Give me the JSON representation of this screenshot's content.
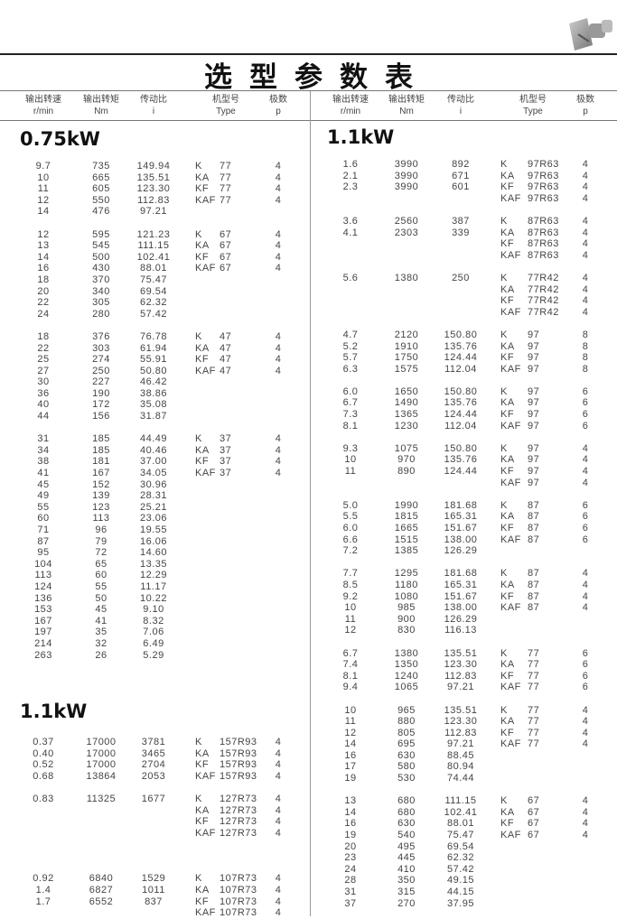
{
  "title": "选型参数表",
  "header": {
    "speed": [
      "输出转速",
      "r/min"
    ],
    "torque": [
      "输出转矩",
      "Nm"
    ],
    "ratio": [
      "传动比",
      "i"
    ],
    "type": [
      "机型号",
      "Type"
    ],
    "poles": [
      "极数",
      "p"
    ]
  },
  "left": [
    {
      "power": "0.75kW",
      "groups": [
        {
          "rows": [
            [
              "9.7",
              "735",
              "149.94",
              "K",
              "77",
              "4"
            ],
            [
              "10",
              "665",
              "135.51",
              "KA",
              "77",
              "4"
            ],
            [
              "11",
              "605",
              "123.30",
              "KF",
              "77",
              "4"
            ],
            [
              "12",
              "550",
              "112.83",
              "KAF",
              "77",
              "4"
            ],
            [
              "14",
              "476",
              "97.21",
              "",
              "",
              ""
            ]
          ]
        },
        {
          "rows": [
            [
              "12",
              "595",
              "121.23",
              "K",
              "67",
              "4"
            ],
            [
              "13",
              "545",
              "111.15",
              "KA",
              "67",
              "4"
            ],
            [
              "14",
              "500",
              "102.41",
              "KF",
              "67",
              "4"
            ],
            [
              "16",
              "430",
              "88.01",
              "KAF",
              "67",
              "4"
            ],
            [
              "18",
              "370",
              "75.47",
              "",
              "",
              ""
            ],
            [
              "20",
              "340",
              "69.54",
              "",
              "",
              ""
            ],
            [
              "22",
              "305",
              "62.32",
              "",
              "",
              ""
            ],
            [
              "24",
              "280",
              "57.42",
              "",
              "",
              ""
            ]
          ]
        },
        {
          "rows": [
            [
              "18",
              "376",
              "76.78",
              "K",
              "47",
              "4"
            ],
            [
              "22",
              "303",
              "61.94",
              "KA",
              "47",
              "4"
            ],
            [
              "25",
              "274",
              "55.91",
              "KF",
              "47",
              "4"
            ],
            [
              "27",
              "250",
              "50.80",
              "KAF",
              "47",
              "4"
            ],
            [
              "30",
              "227",
              "46.42",
              "",
              "",
              ""
            ],
            [
              "36",
              "190",
              "38.86",
              "",
              "",
              ""
            ],
            [
              "40",
              "172",
              "35.08",
              "",
              "",
              ""
            ],
            [
              "44",
              "156",
              "31.87",
              "",
              "",
              ""
            ]
          ]
        },
        {
          "rows": [
            [
              "31",
              "185",
              "44.49",
              "K",
              "37",
              "4"
            ],
            [
              "34",
              "185",
              "40.46",
              "KA",
              "37",
              "4"
            ],
            [
              "38",
              "181",
              "37.00",
              "KF",
              "37",
              "4"
            ],
            [
              "41",
              "167",
              "34.05",
              "KAF",
              "37",
              "4"
            ],
            [
              "45",
              "152",
              "30.96",
              "",
              "",
              ""
            ],
            [
              "49",
              "139",
              "28.31",
              "",
              "",
              ""
            ],
            [
              "55",
              "123",
              "25.21",
              "",
              "",
              ""
            ],
            [
              "60",
              "113",
              "23.06",
              "",
              "",
              ""
            ],
            [
              "71",
              "96",
              "19.55",
              "",
              "",
              ""
            ],
            [
              "87",
              "79",
              "16.06",
              "",
              "",
              ""
            ],
            [
              "95",
              "72",
              "14.60",
              "",
              "",
              ""
            ],
            [
              "104",
              "65",
              "13.35",
              "",
              "",
              ""
            ],
            [
              "113",
              "60",
              "12.29",
              "",
              "",
              ""
            ],
            [
              "124",
              "55",
              "11.17",
              "",
              "",
              ""
            ],
            [
              "136",
              "50",
              "10.22",
              "",
              "",
              ""
            ],
            [
              "153",
              "45",
              "9.10",
              "",
              "",
              ""
            ],
            [
              "167",
              "41",
              "8.32",
              "",
              "",
              ""
            ],
            [
              "197",
              "35",
              "7.06",
              "",
              "",
              ""
            ],
            [
              "214",
              "32",
              "6.49",
              "",
              "",
              ""
            ],
            [
              "263",
              "26",
              "5.29",
              "",
              "",
              ""
            ]
          ]
        }
      ]
    },
    {
      "power": "1.1kW",
      "groups": [
        {
          "rows": [
            [
              "0.37",
              "17000",
              "3781",
              "K",
              "157R93",
              "4"
            ],
            [
              "0.40",
              "17000",
              "3465",
              "KA",
              "157R93",
              "4"
            ],
            [
              "0.52",
              "17000",
              "2704",
              "KF",
              "157R93",
              "4"
            ],
            [
              "0.68",
              "13864",
              "2053",
              "KAF",
              "157R93",
              "4"
            ]
          ]
        },
        {
          "rows": [
            [
              "0.83",
              "11325",
              "1677",
              "K",
              "127R73",
              "4"
            ],
            [
              "",
              "",
              "",
              "KA",
              "127R73",
              "4"
            ],
            [
              "",
              "",
              "",
              "KF",
              "127R73",
              "4"
            ],
            [
              "",
              "",
              "",
              "KAF",
              "127R73",
              "4"
            ]
          ]
        },
        {
          "rows": [
            [
              "0.92",
              "6840",
              "1529",
              "K",
              "107R73",
              "4"
            ],
            [
              "1.4",
              "6827",
              "1011",
              "KA",
              "107R73",
              "4"
            ],
            [
              "1.7",
              "6552",
              "837",
              "KF",
              "107R73",
              "4"
            ],
            [
              "",
              "",
              "",
              "KAF",
              "107R73",
              "4"
            ]
          ]
        }
      ]
    }
  ],
  "right": [
    {
      "power": "1.1kW",
      "groups": [
        {
          "rows": [
            [
              "1.6",
              "3990",
              "892",
              "K",
              "97R63",
              "4"
            ],
            [
              "2.1",
              "3990",
              "671",
              "KA",
              "97R63",
              "4"
            ],
            [
              "2.3",
              "3990",
              "601",
              "KF",
              "97R63",
              "4"
            ],
            [
              "",
              "",
              "",
              "KAF",
              "97R63",
              "4"
            ]
          ]
        },
        {
          "rows": [
            [
              "3.6",
              "2560",
              "387",
              "K",
              "87R63",
              "4"
            ],
            [
              "4.1",
              "2303",
              "339",
              "KA",
              "87R63",
              "4"
            ],
            [
              "",
              "",
              "",
              "KF",
              "87R63",
              "4"
            ],
            [
              "",
              "",
              "",
              "KAF",
              "87R63",
              "4"
            ]
          ]
        },
        {
          "rows": [
            [
              "5.6",
              "1380",
              "250",
              "K",
              "77R42",
              "4"
            ],
            [
              "",
              "",
              "",
              "KA",
              "77R42",
              "4"
            ],
            [
              "",
              "",
              "",
              "KF",
              "77R42",
              "4"
            ],
            [
              "",
              "",
              "",
              "KAF",
              "77R42",
              "4"
            ]
          ]
        },
        {
          "rows": [
            [
              "4.7",
              "2120",
              "150.80",
              "K",
              "97",
              "8"
            ],
            [
              "5.2",
              "1910",
              "135.76",
              "KA",
              "97",
              "8"
            ],
            [
              "5.7",
              "1750",
              "124.44",
              "KF",
              "97",
              "8"
            ],
            [
              "6.3",
              "1575",
              "112.04",
              "KAF",
              "97",
              "8"
            ]
          ]
        },
        {
          "rows": [
            [
              "6.0",
              "1650",
              "150.80",
              "K",
              "97",
              "6"
            ],
            [
              "6.7",
              "1490",
              "135.76",
              "KA",
              "97",
              "6"
            ],
            [
              "7.3",
              "1365",
              "124.44",
              "KF",
              "97",
              "6"
            ],
            [
              "8.1",
              "1230",
              "112.04",
              "KAF",
              "97",
              "6"
            ]
          ]
        },
        {
          "rows": [
            [
              "9.3",
              "1075",
              "150.80",
              "K",
              "97",
              "4"
            ],
            [
              "10",
              "970",
              "135.76",
              "KA",
              "97",
              "4"
            ],
            [
              "11",
              "890",
              "124.44",
              "KF",
              "97",
              "4"
            ],
            [
              "",
              "",
              "",
              "KAF",
              "97",
              "4"
            ]
          ]
        },
        {
          "rows": [
            [
              "5.0",
              "1990",
              "181.68",
              "K",
              "87",
              "6"
            ],
            [
              "5.5",
              "1815",
              "165.31",
              "KA",
              "87",
              "6"
            ],
            [
              "6.0",
              "1665",
              "151.67",
              "KF",
              "87",
              "6"
            ],
            [
              "6.6",
              "1515",
              "138.00",
              "KAF",
              "87",
              "6"
            ],
            [
              "7.2",
              "1385",
              "126.29",
              "",
              "",
              ""
            ]
          ]
        },
        {
          "rows": [
            [
              "7.7",
              "1295",
              "181.68",
              "K",
              "87",
              "4"
            ],
            [
              "8.5",
              "1180",
              "165.31",
              "KA",
              "87",
              "4"
            ],
            [
              "9.2",
              "1080",
              "151.67",
              "KF",
              "87",
              "4"
            ],
            [
              "10",
              "985",
              "138.00",
              "KAF",
              "87",
              "4"
            ],
            [
              "11",
              "900",
              "126.29",
              "",
              "",
              ""
            ],
            [
              "12",
              "830",
              "116.13",
              "",
              "",
              ""
            ]
          ]
        },
        {
          "rows": [
            [
              "6.7",
              "1380",
              "135.51",
              "K",
              "77",
              "6"
            ],
            [
              "7.4",
              "1350",
              "123.30",
              "KA",
              "77",
              "6"
            ],
            [
              "8.1",
              "1240",
              "112.83",
              "KF",
              "77",
              "6"
            ],
            [
              "9.4",
              "1065",
              "97.21",
              "KAF",
              "77",
              "6"
            ]
          ]
        },
        {
          "rows": [
            [
              "10",
              "965",
              "135.51",
              "K",
              "77",
              "4"
            ],
            [
              "11",
              "880",
              "123.30",
              "KA",
              "77",
              "4"
            ],
            [
              "12",
              "805",
              "112.83",
              "KF",
              "77",
              "4"
            ],
            [
              "14",
              "695",
              "97.21",
              "KAF",
              "77",
              "4"
            ],
            [
              "16",
              "630",
              "88.45",
              "",
              "",
              ""
            ],
            [
              "17",
              "580",
              "80.94",
              "",
              "",
              ""
            ],
            [
              "19",
              "530",
              "74.44",
              "",
              "",
              ""
            ]
          ]
        },
        {
          "rows": [
            [
              "13",
              "680",
              "111.15",
              "K",
              "67",
              "4"
            ],
            [
              "14",
              "680",
              "102.41",
              "KA",
              "67",
              "4"
            ],
            [
              "16",
              "630",
              "88.01",
              "KF",
              "67",
              "4"
            ],
            [
              "19",
              "540",
              "75.47",
              "KAF",
              "67",
              "4"
            ],
            [
              "20",
              "495",
              "69.54",
              "",
              "",
              ""
            ],
            [
              "23",
              "445",
              "62.32",
              "",
              "",
              ""
            ],
            [
              "24",
              "410",
              "57.42",
              "",
              "",
              ""
            ],
            [
              "28",
              "350",
              "49.15",
              "",
              "",
              ""
            ],
            [
              "31",
              "315",
              "44.15",
              "",
              "",
              ""
            ],
            [
              "37",
              "270",
              "37.95",
              "",
              "",
              ""
            ]
          ]
        }
      ]
    }
  ]
}
